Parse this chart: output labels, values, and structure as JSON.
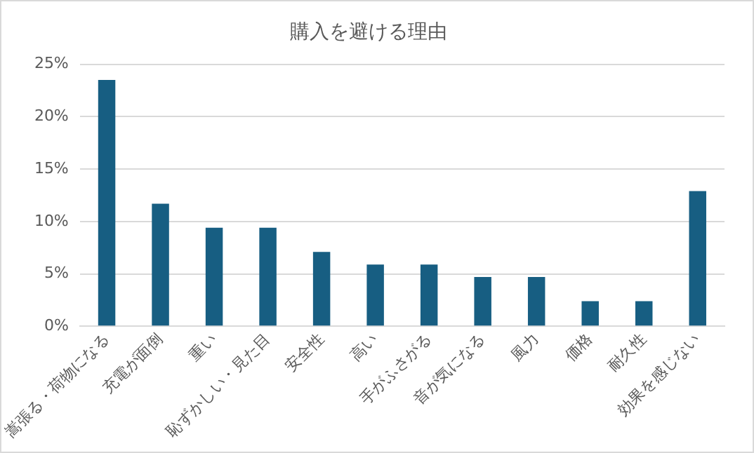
{
  "chart_data": {
    "type": "bar",
    "title": "購入を避ける理由",
    "categories": [
      "嵩張る・荷物になる",
      "充電が面倒",
      "重い",
      "恥ずかしい・見た目",
      "安全性",
      "高い",
      "手がふさがる",
      "音が気になる",
      "風力",
      "価格",
      "耐久性",
      "効果を感じない"
    ],
    "values": [
      23.5,
      11.7,
      9.4,
      9.4,
      7.1,
      5.9,
      5.9,
      4.7,
      4.7,
      2.4,
      2.4,
      12.9
    ],
    "color": "#175e82",
    "ylim": [
      0,
      25
    ],
    "yticks": [
      {
        "value": 0,
        "label": "0%"
      },
      {
        "value": 5,
        "label": "5%"
      },
      {
        "value": 10,
        "label": "10%"
      },
      {
        "value": 15,
        "label": "15%"
      },
      {
        "value": 20,
        "label": "20%"
      },
      {
        "value": 25,
        "label": "25%"
      }
    ],
    "grid": "y",
    "legend": false
  }
}
